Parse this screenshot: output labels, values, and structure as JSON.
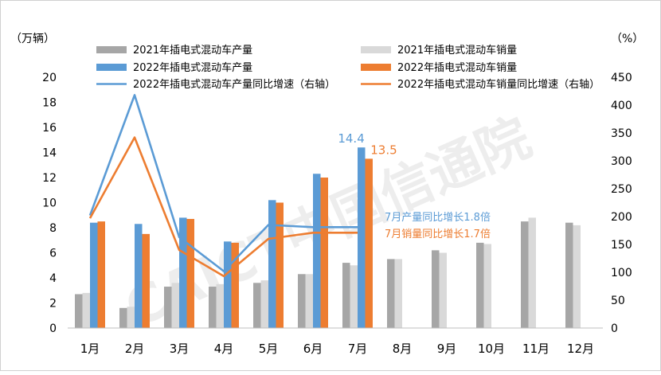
{
  "chart_data": {
    "type": "bar",
    "left_unit_label": "（万辆）",
    "right_unit_label": "（%）",
    "categories": [
      "1月",
      "2月",
      "3月",
      "4月",
      "5月",
      "6月",
      "7月",
      "8月",
      "9月",
      "10月",
      "11月",
      "12月"
    ],
    "ylim_left": [
      0,
      20
    ],
    "yticks_left": [
      0,
      2,
      4,
      6,
      8,
      10,
      12,
      14,
      16,
      18,
      20
    ],
    "ylim_right": [
      0,
      450
    ],
    "yticks_right": [
      0,
      50,
      100,
      150,
      200,
      250,
      300,
      350,
      400,
      450
    ],
    "grid": false,
    "legend_position": "top",
    "series": [
      {
        "name": "2021年插电式混动车产量",
        "kind": "bar",
        "axis": "left",
        "color": "#a6a6a6",
        "values": [
          2.7,
          1.6,
          3.3,
          3.3,
          3.6,
          4.3,
          5.2,
          5.5,
          6.2,
          6.8,
          8.5,
          8.4
        ]
      },
      {
        "name": "2021年插电式混动车销量",
        "kind": "bar",
        "axis": "left",
        "color": "#d9d9d9",
        "values": [
          2.8,
          1.7,
          3.6,
          3.5,
          3.8,
          4.3,
          5.0,
          5.5,
          6.0,
          6.7,
          8.8,
          8.2
        ]
      },
      {
        "name": "2022年插电式混动车产量",
        "kind": "bar",
        "axis": "left",
        "color": "#5b9bd5",
        "values": [
          8.4,
          8.3,
          8.8,
          6.9,
          10.2,
          12.3,
          14.4,
          null,
          null,
          null,
          null,
          null
        ]
      },
      {
        "name": "2022年插电式混动车销量",
        "kind": "bar",
        "axis": "left",
        "color": "#ed7d31",
        "values": [
          8.5,
          7.5,
          8.7,
          6.8,
          10.0,
          12.0,
          13.5,
          null,
          null,
          null,
          null,
          null
        ]
      },
      {
        "name": "2022年插电式混动车产量同比增速（右轴）",
        "kind": "line",
        "axis": "right",
        "color": "#5b9bd5",
        "values": [
          202,
          418,
          163,
          102,
          185,
          181,
          181,
          null,
          null,
          null,
          null,
          null
        ]
      },
      {
        "name": "2022年插电式混动车销量同比增速（右轴）",
        "kind": "line",
        "axis": "right",
        "color": "#ed7d31",
        "values": [
          197,
          342,
          140,
          93,
          160,
          171,
          171,
          null,
          null,
          null,
          null,
          null
        ]
      }
    ],
    "data_labels": [
      {
        "series": 2,
        "index": 6,
        "text": "14.4",
        "color": "#5b9bd5"
      },
      {
        "series": 3,
        "index": 6,
        "text": "13.5",
        "color": "#ed7d31"
      }
    ],
    "annotations": [
      {
        "text": "7月产量同比增长1.8倍",
        "color": "#5b9bd5"
      },
      {
        "text": "7月销量同比增长1.7倍",
        "color": "#ed7d31"
      }
    ],
    "watermark": "CAICT中国信通院"
  }
}
